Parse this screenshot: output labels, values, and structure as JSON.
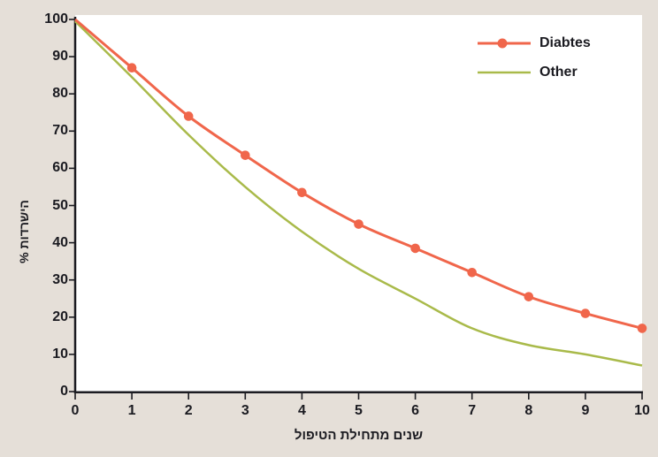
{
  "chart_data": {
    "type": "line",
    "x": [
      0,
      1,
      2,
      3,
      4,
      5,
      6,
      7,
      8,
      9,
      10
    ],
    "series": [
      {
        "name": "Diabtes",
        "color": "#f0664b",
        "marker": "circle",
        "values": [
          100,
          87,
          74,
          63.5,
          53.5,
          45,
          38.5,
          32,
          25.5,
          21,
          17
        ]
      },
      {
        "name": "Other",
        "color": "#a9ba4a",
        "marker": "none",
        "values": [
          99.5,
          84.5,
          69,
          55,
          43,
          33,
          25,
          17,
          12.5,
          10,
          7
        ]
      }
    ],
    "title": "",
    "xlabel": "שנים מתחילת הטיפול",
    "ylabel": "הישרדות %",
    "xlim": [
      0,
      10
    ],
    "ylim": [
      0,
      100
    ],
    "x_ticks": [
      0,
      1,
      2,
      3,
      4,
      5,
      6,
      7,
      8,
      9,
      10
    ],
    "y_ticks": [
      0,
      10,
      20,
      30,
      40,
      50,
      60,
      70,
      80,
      90,
      100
    ],
    "grid": false,
    "legend_position": "top-right"
  },
  "colors": {
    "background": "#e5dfd8",
    "plot_background": "#ffffff",
    "axis": "#1b1b21",
    "text": "#1b1b21",
    "series_diabetes": "#f0664b",
    "series_other": "#a9ba4a"
  }
}
